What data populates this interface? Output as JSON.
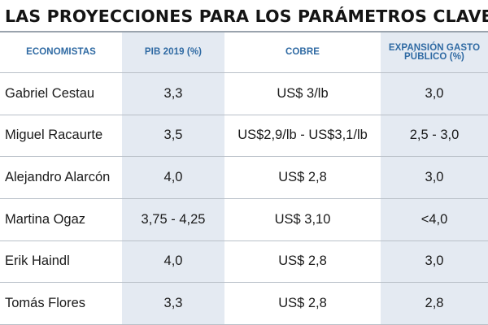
{
  "title": "LAS PROYECCIONES PARA LOS PARÁMETROS CLAVE",
  "headers": [
    "ECONOMISTAS",
    "PIB 2019 (%)",
    "COBRE",
    "EXPANSIÓN GASTO PÚBLICO (%)"
  ],
  "rows": [
    {
      "name": "Gabriel Cestau",
      "pib": "3,3",
      "cobre": "US$ 3/lb",
      "gasto": "3,0"
    },
    {
      "name": "Miguel Racaurte",
      "pib": "3,5",
      "cobre": "US$2,9/lb - US$3,1/lb",
      "gasto": "2,5 - 3,0"
    },
    {
      "name": "Alejandro Alarcón",
      "pib": "4,0",
      "cobre": "US$ 2,8",
      "gasto": "3,0"
    },
    {
      "name": "Martina Ogaz",
      "pib": "3,75 - 4,25",
      "cobre": "US$ 3,10",
      "gasto": "<4,0"
    },
    {
      "name": "Erik Haindl",
      "pib": "4,0",
      "cobre": "US$ 2,8",
      "gasto": "3,0"
    },
    {
      "name": "Tomás Flores",
      "pib": "3,3",
      "cobre": "US$ 2,8",
      "gasto": "2,8"
    }
  ],
  "colors": {
    "header_text": "#2f6aa3",
    "shaded_column": "#e4eaf2",
    "rule": "#9aa3ad"
  }
}
